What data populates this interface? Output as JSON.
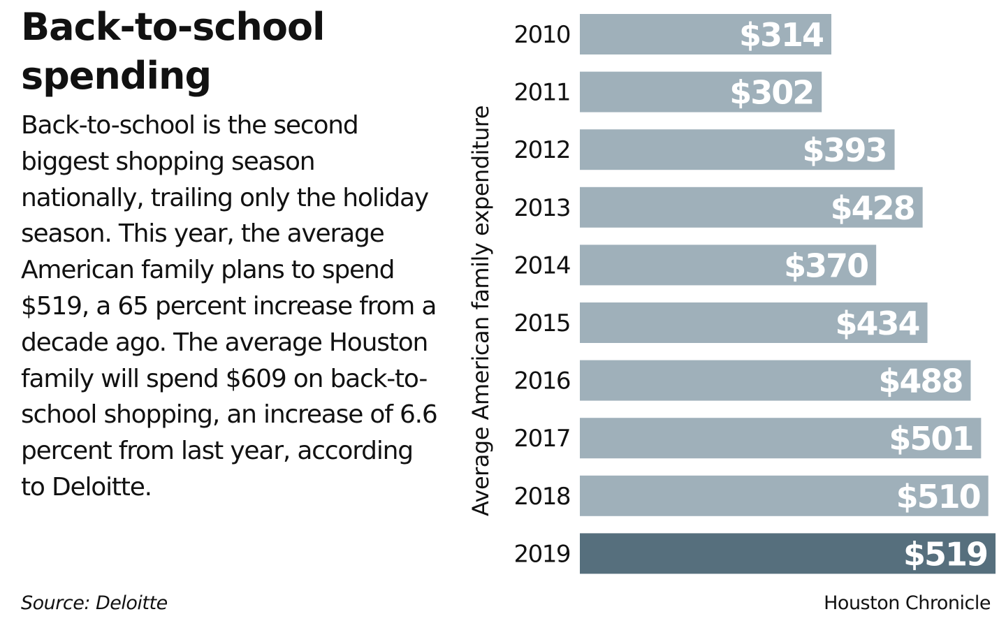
{
  "title": "Back-to-school spending",
  "body": "Back-to-school is the second biggest shopping season nationally, trailing only the holiday season. This year, the average American family plans to spend $519, a 65 percent increase from a decade ago. The average Houston family will spend $609 on back-to-school shopping, an increase of 6.6 percent from last year, according to Deloitte.",
  "source": "Source: Deloitte",
  "credit": "Houston Chronicle",
  "chart_data": {
    "type": "bar",
    "orientation": "horizontal",
    "ylabel": "Average American family expenditure",
    "categories": [
      "2010",
      "2011",
      "2012",
      "2013",
      "2014",
      "2015",
      "2016",
      "2017",
      "2018",
      "2019"
    ],
    "values": [
      314,
      302,
      393,
      428,
      370,
      434,
      488,
      501,
      510,
      519
    ],
    "data_labels": [
      "$314",
      "$302",
      "$393",
      "$428",
      "$370",
      "$434",
      "$488",
      "$501",
      "$510",
      "$519"
    ],
    "xlim": [
      0,
      519
    ],
    "grid": false,
    "colors": {
      "default": "#9fb0ba",
      "highlight": "#566f7d",
      "highlight_category": "2019",
      "label": "#ffffff"
    }
  }
}
